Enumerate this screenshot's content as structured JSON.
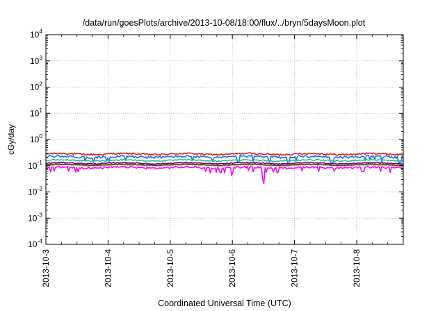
{
  "chart_data": {
    "type": "line",
    "title": "/data/run/goesPlots/archive/2013-10-08/18:00/flux/../bryn/5daysMoon.plot",
    "xlabel": "Coordinated Universal Time (UTC)",
    "ylabel": "cGy/day",
    "yscale": "log",
    "ylim": [
      0.0001,
      10000
    ],
    "xlim": [
      "2013-10-03",
      "2013-10-08T18:00"
    ],
    "grid": true,
    "legend": "none",
    "x_tick_labels": [
      "2013-10-3",
      "2013-10-4",
      "2013-10-5",
      "2013-10-6",
      "2013-10-7",
      "2013-10-8"
    ],
    "y_ticks": [
      {
        "base": "10",
        "exp": "-4"
      },
      {
        "base": "10",
        "exp": "-3"
      },
      {
        "base": "10",
        "exp": "-2"
      },
      {
        "base": "10",
        "exp": "-1"
      },
      {
        "base": "10",
        "exp": "0"
      },
      {
        "base": "10",
        "exp": "1"
      },
      {
        "base": "10",
        "exp": "2"
      },
      {
        "base": "10",
        "exp": "3"
      },
      {
        "base": "10",
        "exp": "4"
      }
    ],
    "series": [
      {
        "color": "#e41a1c",
        "level": 0.28,
        "noise": 0.07,
        "dips": []
      },
      {
        "color": "#1e6fe0",
        "level": 0.22,
        "noise": 0.1,
        "dips": [
          [
            3.1,
            0.13
          ],
          [
            3.9,
            0.12
          ],
          [
            4.6,
            0.13
          ],
          [
            5.7,
            0.13
          ]
        ]
      },
      {
        "color": "#20c0a0",
        "level": 0.16,
        "noise": 0.05,
        "dips": []
      },
      {
        "color": "#7f007f",
        "level": 0.125,
        "noise": 0.04,
        "dips": []
      },
      {
        "color": "#e8a020",
        "level": 0.105,
        "noise": 0.04,
        "dips": []
      },
      {
        "color": "#444444",
        "level": 0.11,
        "noise": 0.03,
        "dips": []
      },
      {
        "color": "#ff00ff",
        "level": 0.085,
        "noise": 0.08,
        "dips": [
          [
            3.5,
            0.03
          ],
          [
            3.0,
            0.06
          ],
          [
            5.1,
            0.06
          ]
        ]
      }
    ]
  }
}
